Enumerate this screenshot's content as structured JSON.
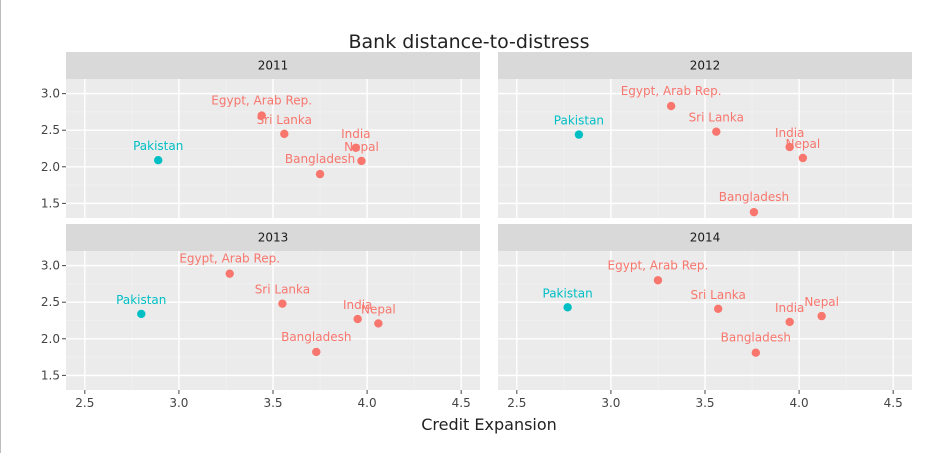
{
  "chart_data": {
    "type": "scatter",
    "title": "Bank distance-to-distress",
    "xlabel": "Credit Expansion",
    "ylabel": "",
    "xlim": [
      2.4,
      4.6
    ],
    "ylim": [
      1.3,
      3.2
    ],
    "x_ticks": [
      "2.5",
      "3.0",
      "3.5",
      "4.0",
      "4.5"
    ],
    "y_ticks": [
      "1.5",
      "2.0",
      "2.5",
      "3.0"
    ],
    "grid": true,
    "legend": "none",
    "colors": {
      "highlight": "#00bfc4",
      "other": "#f8766d"
    },
    "facets": [
      {
        "label": "2011",
        "points": [
          {
            "name": "Egypt, Arab Rep.",
            "x": 3.44,
            "y": 2.7,
            "group": "other"
          },
          {
            "name": "Sri Lanka",
            "x": 3.56,
            "y": 2.45,
            "group": "other"
          },
          {
            "name": "Pakistan",
            "x": 2.89,
            "y": 2.09,
            "group": "highlight"
          },
          {
            "name": "India",
            "x": 3.94,
            "y": 2.26,
            "group": "other"
          },
          {
            "name": "Nepal",
            "x": 3.97,
            "y": 2.08,
            "group": "other"
          },
          {
            "name": "Bangladesh",
            "x": 3.75,
            "y": 1.9,
            "group": "other"
          }
        ]
      },
      {
        "label": "2012",
        "points": [
          {
            "name": "Egypt, Arab Rep.",
            "x": 3.32,
            "y": 2.83,
            "group": "other"
          },
          {
            "name": "Pakistan",
            "x": 2.83,
            "y": 2.44,
            "group": "highlight"
          },
          {
            "name": "Sri Lanka",
            "x": 3.56,
            "y": 2.48,
            "group": "other"
          },
          {
            "name": "India",
            "x": 3.95,
            "y": 2.27,
            "group": "other"
          },
          {
            "name": "Nepal",
            "x": 4.02,
            "y": 2.12,
            "group": "other"
          },
          {
            "name": "Bangladesh",
            "x": 3.76,
            "y": 1.38,
            "group": "other"
          }
        ]
      },
      {
        "label": "2013",
        "points": [
          {
            "name": "Egypt, Arab Rep.",
            "x": 3.27,
            "y": 2.89,
            "group": "other"
          },
          {
            "name": "Pakistan",
            "x": 2.8,
            "y": 2.34,
            "group": "highlight"
          },
          {
            "name": "Sri Lanka",
            "x": 3.55,
            "y": 2.48,
            "group": "other"
          },
          {
            "name": "India",
            "x": 3.95,
            "y": 2.27,
            "group": "other"
          },
          {
            "name": "Nepal",
            "x": 4.06,
            "y": 2.21,
            "group": "other"
          },
          {
            "name": "Bangladesh",
            "x": 3.73,
            "y": 1.82,
            "group": "other"
          }
        ]
      },
      {
        "label": "2014",
        "points": [
          {
            "name": "Egypt, Arab Rep.",
            "x": 3.25,
            "y": 2.8,
            "group": "other"
          },
          {
            "name": "Pakistan",
            "x": 2.77,
            "y": 2.43,
            "group": "highlight"
          },
          {
            "name": "Sri Lanka",
            "x": 3.57,
            "y": 2.41,
            "group": "other"
          },
          {
            "name": "India",
            "x": 3.95,
            "y": 2.23,
            "group": "other"
          },
          {
            "name": "Nepal",
            "x": 4.12,
            "y": 2.31,
            "group": "other"
          },
          {
            "name": "Bangladesh",
            "x": 3.77,
            "y": 1.81,
            "group": "other"
          }
        ]
      }
    ]
  }
}
